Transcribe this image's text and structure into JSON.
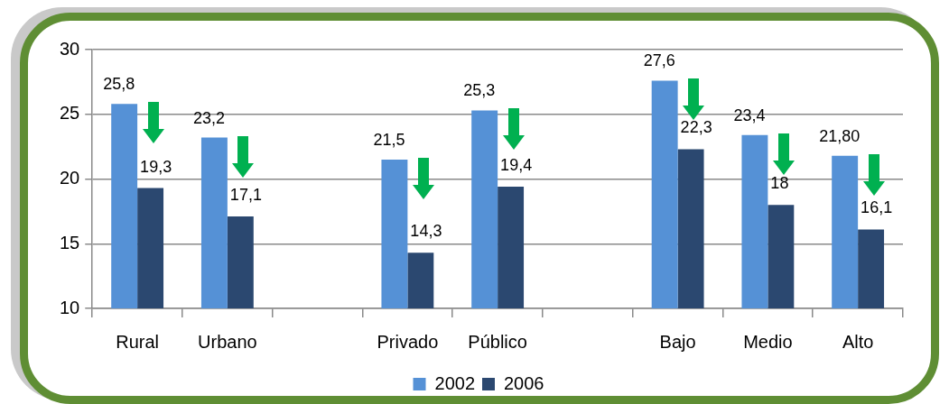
{
  "chart_data": {
    "type": "bar",
    "categories": [
      "Rural",
      "Urbano",
      null,
      "Privado",
      "Público",
      null,
      "Bajo",
      "Medio",
      "Alto"
    ],
    "series": [
      {
        "name": "2002",
        "color": "#5591d6",
        "values": [
          25.8,
          23.2,
          null,
          21.5,
          25.3,
          null,
          27.6,
          23.4,
          21.8
        ],
        "value_labels": [
          "25,8",
          "23,2",
          null,
          "21,5",
          "25,3",
          null,
          "27,6",
          "23,4",
          "21,80"
        ]
      },
      {
        "name": "2006",
        "color": "#2b4870",
        "values": [
          19.3,
          17.1,
          null,
          14.3,
          19.4,
          null,
          22.3,
          18,
          16.1
        ],
        "value_labels": [
          "19,3",
          "17,1",
          null,
          "14,3",
          "19,4",
          null,
          "22,3",
          "18",
          "16,1"
        ]
      }
    ],
    "ylim": [
      10,
      30
    ],
    "yticks": [
      10,
      15,
      20,
      25,
      30
    ],
    "grid": "y",
    "legend": "bottom"
  }
}
